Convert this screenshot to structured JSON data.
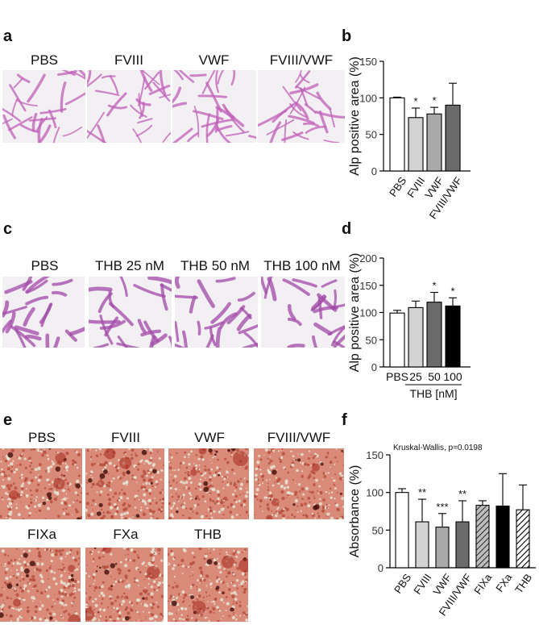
{
  "panels": {
    "a": {
      "letter": "a",
      "images": [
        {
          "label": "PBS"
        },
        {
          "label": "FVIII"
        },
        {
          "label": "VWF"
        },
        {
          "label": "FVIII/VWF"
        }
      ]
    },
    "b": {
      "letter": "b"
    },
    "c": {
      "letter": "c",
      "images": [
        {
          "label": "PBS"
        },
        {
          "label": "THB 25 nM"
        },
        {
          "label": "THB 50 nM"
        },
        {
          "label": "THB 100 nM"
        }
      ]
    },
    "d": {
      "letter": "d"
    },
    "e": {
      "letter": "e",
      "images": [
        {
          "label": "PBS"
        },
        {
          "label": "FVIII"
        },
        {
          "label": "VWF"
        },
        {
          "label": "FVIII/VWF"
        },
        {
          "label": "FIXa"
        },
        {
          "label": "FXa"
        },
        {
          "label": "THB"
        }
      ]
    },
    "f": {
      "letter": "f"
    }
  },
  "colors": {
    "stain_purple": "#c060b8",
    "stain_red": "#c0392b",
    "white": "#ffffff",
    "light_gray": "#d3d3d3",
    "mid_gray": "#a9a9a9",
    "dark_gray": "#6b6b6b",
    "black": "#000000"
  },
  "chart_data": [
    {
      "id": "b",
      "type": "bar",
      "ylabel": "Alp positive area (%)",
      "ylim": [
        0,
        150
      ],
      "yticks": [
        0,
        50,
        100,
        150
      ],
      "categories": [
        "PBS",
        "FVIII",
        "VWF",
        "FVIII/VWF"
      ],
      "values": [
        100,
        73,
        78,
        90
      ],
      "errors": [
        1,
        13,
        9,
        30
      ],
      "significance": [
        "",
        "*",
        "*",
        ""
      ],
      "fills": [
        "#ffffff",
        "#d3d3d3",
        "#a9a9a9",
        "#6b6b6b"
      ],
      "group_label": ""
    },
    {
      "id": "d",
      "type": "bar",
      "ylabel": "Alp positive area (%)",
      "ylim": [
        0,
        200
      ],
      "yticks": [
        0,
        50,
        100,
        150,
        200
      ],
      "categories": [
        "PBS",
        "25",
        "50",
        "100"
      ],
      "values": [
        99,
        109,
        119,
        112
      ],
      "errors": [
        5,
        12,
        18,
        15
      ],
      "significance": [
        "",
        "",
        "*",
        "*"
      ],
      "fills": [
        "#ffffff",
        "#d3d3d3",
        "#6b6b6b",
        "#000000"
      ],
      "group_label": "THB [nM]"
    },
    {
      "id": "f",
      "type": "bar",
      "ylabel": "Absorbance (%)",
      "annotation": "Kruskal-Wallis, p=0.0198",
      "ylim": [
        0,
        150
      ],
      "yticks": [
        0,
        50,
        100,
        150
      ],
      "categories": [
        "PBS",
        "FVIII",
        "VWF",
        "FVIII/VWF",
        "FIXa",
        "FXa",
        "THB"
      ],
      "values": [
        100,
        61,
        54,
        61,
        83,
        82,
        77
      ],
      "errors": [
        5,
        30,
        18,
        28,
        6,
        43,
        33
      ],
      "significance": [
        "",
        "**",
        "***",
        "**",
        "",
        "",
        ""
      ],
      "fills": [
        "#ffffff",
        "#d3d3d3",
        "#a9a9a9",
        "#6b6b6b",
        "hatch-light",
        "#000000",
        "hatch-dark"
      ],
      "group_label": ""
    }
  ]
}
